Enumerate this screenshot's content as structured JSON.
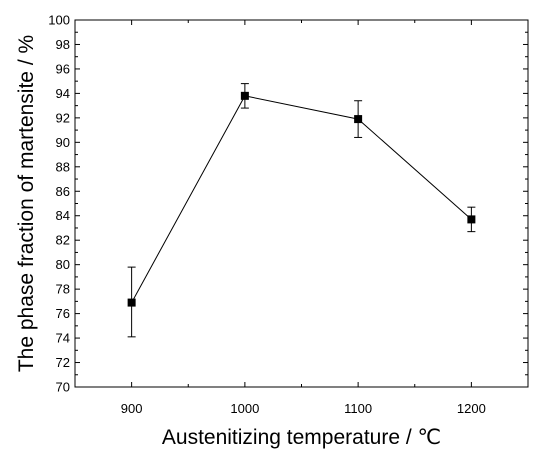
{
  "chart_data": {
    "type": "line",
    "title": "",
    "xlabel": "Austenitizing temperature / ℃",
    "ylabel": "The phase fraction of martensite / %",
    "x": [
      900,
      1000,
      1100,
      1200
    ],
    "x_ticks": [
      "900",
      "1000",
      "1100",
      "1200"
    ],
    "xlim": [
      850,
      1250
    ],
    "ylim": [
      70,
      100
    ],
    "y_ticks": [
      "70",
      "72",
      "74",
      "76",
      "78",
      "80",
      "82",
      "84",
      "86",
      "88",
      "90",
      "92",
      "94",
      "96",
      "98",
      "100"
    ],
    "series": [
      {
        "values": [
          76.9,
          93.8,
          91.9,
          83.7
        ],
        "error_low": [
          74.1,
          92.8,
          90.4,
          82.7
        ],
        "error_high": [
          79.8,
          94.8,
          93.4,
          84.7
        ],
        "marker": "square",
        "color": "#000000"
      }
    ],
    "grid": false,
    "legend": "none"
  }
}
